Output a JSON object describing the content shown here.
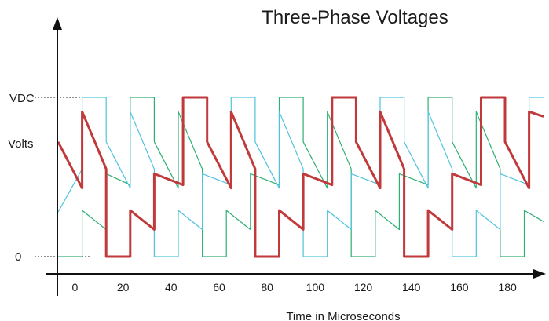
{
  "chart_data": {
    "type": "line",
    "title": "Three-Phase Voltages",
    "xlabel": "Time in Microseconds",
    "ylabel": "Volts",
    "y_levels": {
      "top": "VDC",
      "bottom": "0"
    },
    "xlim": [
      -7,
      195
    ],
    "ylim": [
      0,
      1
    ],
    "xticks": [
      0,
      20,
      40,
      60,
      80,
      100,
      120,
      140,
      160,
      180
    ],
    "grid": false,
    "colors": {
      "axis": "#111111",
      "level_guides": "#222222"
    },
    "series": [
      {
        "color": "#c0393b",
        "width": 3,
        "points": [
          [
            -7,
            0.72
          ],
          [
            3,
            0.43
          ],
          [
            3,
            0.91
          ],
          [
            13,
            0.55
          ],
          [
            13,
            0
          ],
          [
            23,
            0
          ],
          [
            23,
            0.29
          ],
          [
            33,
            0.17
          ],
          [
            33,
            0.52
          ],
          [
            45,
            0.45
          ],
          [
            45,
            1
          ],
          [
            55,
            1
          ],
          [
            55,
            0.72
          ],
          [
            65,
            0.43
          ],
          [
            65,
            0.91
          ],
          [
            75,
            0.55
          ],
          [
            75,
            0
          ],
          [
            85,
            0
          ],
          [
            85,
            0.29
          ],
          [
            95,
            0.17
          ],
          [
            95,
            0.52
          ],
          [
            107,
            0.45
          ],
          [
            107,
            1
          ],
          [
            117,
            1
          ],
          [
            117,
            0.72
          ],
          [
            127,
            0.43
          ],
          [
            127,
            0.91
          ],
          [
            137,
            0.55
          ],
          [
            137,
            0
          ],
          [
            147,
            0
          ],
          [
            147,
            0.29
          ],
          [
            157,
            0.17
          ],
          [
            157,
            0.52
          ],
          [
            169,
            0.45
          ],
          [
            169,
            1
          ],
          [
            179,
            1
          ],
          [
            179,
            0.72
          ],
          [
            189,
            0.43
          ],
          [
            189,
            0.91
          ],
          [
            195,
            0.88
          ]
        ]
      },
      {
        "color": "#2eaf73",
        "width": 1.2,
        "points": [
          [
            -7,
            0
          ],
          [
            3,
            0
          ],
          [
            3,
            0.29
          ],
          [
            13,
            0.17
          ],
          [
            13,
            0.52
          ],
          [
            23,
            0.45
          ],
          [
            23,
            1
          ],
          [
            33,
            1
          ],
          [
            33,
            0.72
          ],
          [
            43,
            0.43
          ],
          [
            43,
            0.91
          ],
          [
            53,
            0.55
          ],
          [
            53,
            0
          ],
          [
            63,
            0
          ],
          [
            63,
            0.29
          ],
          [
            73,
            0.17
          ],
          [
            73,
            0.52
          ],
          [
            85,
            0.45
          ],
          [
            85,
            1
          ],
          [
            95,
            1
          ],
          [
            95,
            0.72
          ],
          [
            105,
            0.43
          ],
          [
            105,
            0.91
          ],
          [
            115,
            0.55
          ],
          [
            115,
            0
          ],
          [
            125,
            0
          ],
          [
            125,
            0.29
          ],
          [
            135,
            0.17
          ],
          [
            135,
            0.52
          ],
          [
            147,
            0.45
          ],
          [
            147,
            1
          ],
          [
            157,
            1
          ],
          [
            157,
            0.72
          ],
          [
            167,
            0.43
          ],
          [
            167,
            0.91
          ],
          [
            177,
            0.55
          ],
          [
            177,
            0
          ],
          [
            187,
            0
          ],
          [
            187,
            0.29
          ],
          [
            195,
            0.22
          ]
        ]
      },
      {
        "color": "#4ec3dc",
        "width": 1.2,
        "points": [
          [
            -7,
            0.28
          ],
          [
            3,
            0.55
          ],
          [
            3,
            1
          ],
          [
            13,
            1
          ],
          [
            13,
            0.72
          ],
          [
            23,
            0.43
          ],
          [
            23,
            0.91
          ],
          [
            33,
            0.55
          ],
          [
            33,
            0
          ],
          [
            43,
            0
          ],
          [
            43,
            0.29
          ],
          [
            53,
            0.17
          ],
          [
            53,
            0.52
          ],
          [
            65,
            0.45
          ],
          [
            65,
            1
          ],
          [
            75,
            1
          ],
          [
            75,
            0.72
          ],
          [
            85,
            0.43
          ],
          [
            85,
            0.91
          ],
          [
            95,
            0.55
          ],
          [
            95,
            0
          ],
          [
            105,
            0
          ],
          [
            105,
            0.29
          ],
          [
            115,
            0.17
          ],
          [
            115,
            0.52
          ],
          [
            127,
            0.45
          ],
          [
            127,
            1
          ],
          [
            137,
            1
          ],
          [
            137,
            0.72
          ],
          [
            147,
            0.43
          ],
          [
            147,
            0.91
          ],
          [
            157,
            0.55
          ],
          [
            157,
            0
          ],
          [
            167,
            0
          ],
          [
            167,
            0.29
          ],
          [
            177,
            0.17
          ],
          [
            177,
            0.52
          ],
          [
            189,
            0.45
          ],
          [
            189,
            1
          ],
          [
            195,
            1
          ]
        ]
      }
    ]
  }
}
